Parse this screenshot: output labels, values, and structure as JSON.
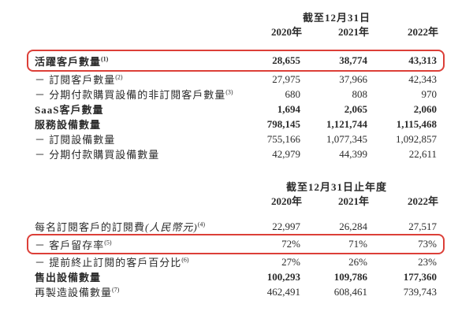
{
  "colors": {
    "highlight_box": "#dc3f38",
    "text": "#2b2b2b",
    "background": "#ffffff"
  },
  "sections": [
    {
      "period_header": "截至12月31日",
      "year_columns": [
        "2020年",
        "2021年",
        "2022年"
      ],
      "rows": [
        {
          "label": "活躍客戶數量",
          "footnote": "(1)",
          "values": [
            "28,655",
            "38,774",
            "43,313"
          ],
          "bold": true,
          "highlighted": true
        },
        {
          "label": "－ 訂閱客戶數量",
          "footnote": "(2)",
          "values": [
            "27,975",
            "37,966",
            "42,343"
          ],
          "bold": false,
          "highlighted": false
        },
        {
          "label": "－ 分期付款購買設備的非訂閱客戶數量",
          "footnote": "(3)",
          "values": [
            "680",
            "808",
            "970"
          ],
          "bold": false,
          "highlighted": false
        },
        {
          "label": "SaaS客戶數量",
          "values": [
            "1,694",
            "2,065",
            "2,060"
          ],
          "bold": true,
          "highlighted": false
        },
        {
          "label": "服務設備數量",
          "values": [
            "798,145",
            "1,121,744",
            "1,115,468"
          ],
          "bold": true,
          "highlighted": false
        },
        {
          "label": "－ 訂閱設備數量",
          "values": [
            "755,166",
            "1,077,345",
            "1,092,857"
          ],
          "bold": false,
          "highlighted": false
        },
        {
          "label": "－ 分期付款購買設備數量",
          "values": [
            "42,979",
            "44,399",
            "22,611"
          ],
          "bold": false,
          "highlighted": false
        }
      ]
    },
    {
      "period_header": "截至12月31日止年度",
      "year_columns": [
        "2020年",
        "2021年",
        "2022年"
      ],
      "rows": [
        {
          "label": "每名訂閱客戶的訂閱費",
          "label_italic": "(人民幣元)",
          "footnote": "(4)",
          "values": [
            "22,997",
            "26,284",
            "27,517"
          ],
          "bold": false,
          "highlighted": false
        },
        {
          "label": "－ 客戶留存率",
          "footnote": "(5)",
          "values": [
            "72%",
            "71%",
            "73%"
          ],
          "bold": false,
          "highlighted": true
        },
        {
          "label": "－ 提前終止訂閱的客戶百分比",
          "footnote": "(6)",
          "values": [
            "27%",
            "26%",
            "23%"
          ],
          "bold": false,
          "highlighted": false
        },
        {
          "label": "售出設備數量",
          "values": [
            "100,293",
            "109,786",
            "177,360"
          ],
          "bold": true,
          "highlighted": false
        },
        {
          "label": "再製造設備數量",
          "footnote": "(7)",
          "values": [
            "462,491",
            "608,461",
            "739,743"
          ],
          "bold": false,
          "highlighted": false
        }
      ]
    }
  ]
}
